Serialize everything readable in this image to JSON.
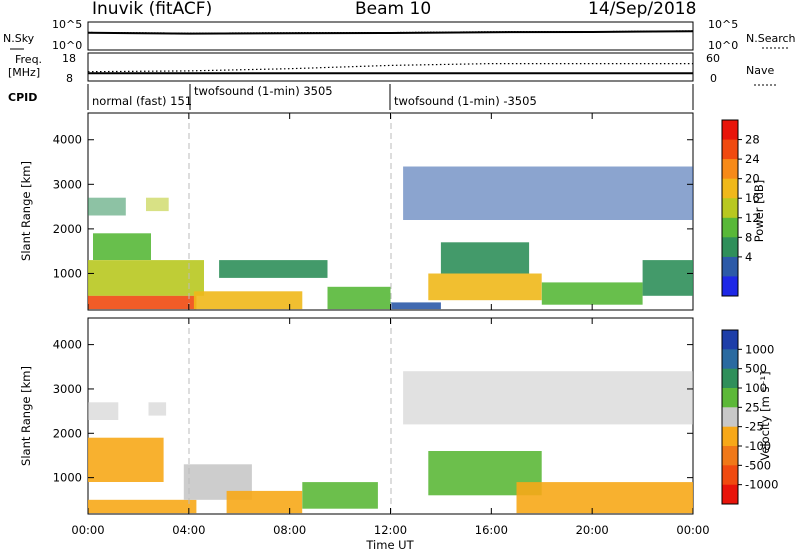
{
  "header": {
    "station": "Inuvik (fitACF)",
    "beam": "Beam 10",
    "date": "14/Sep/2018"
  },
  "noise_panel": {
    "left_label": "N.Sky",
    "right_label": "N.Search",
    "left_ticks": [
      "10^5",
      "10^0"
    ],
    "right_ticks": [
      "10^5",
      "10^0"
    ]
  },
  "freq_panel": {
    "left_label_line1": "Freq.",
    "left_label_line2": "[MHz]",
    "right_label": "Nave",
    "left_ticks": [
      "18",
      "8"
    ],
    "right_ticks": [
      "60",
      "0"
    ]
  },
  "cpid_panel": {
    "label": "CPID",
    "segments": [
      "normal (fast) 151",
      "twofsound (1-min) 3505",
      "twofsound (1-min) -3505"
    ]
  },
  "x_axis": {
    "title": "Time UT",
    "ticks": [
      "00:00",
      "04:00",
      "08:00",
      "12:00",
      "16:00",
      "20:00",
      "00:00"
    ]
  },
  "colorbars": {
    "power": {
      "label": "Power [dB]",
      "ticks": [
        "28",
        "24",
        "20",
        "16",
        "12",
        "8",
        "4"
      ],
      "colors": [
        "#e8140a",
        "#f04a10",
        "#f78a18",
        "#f0b81a",
        "#b8c820",
        "#58b838",
        "#2f8f5a",
        "#2c5aa8",
        "#1e28e6"
      ]
    },
    "velocity": {
      "label": "Velocity [m s⁻¹]",
      "ticks": [
        "1000",
        "500",
        "100",
        "25",
        "-25",
        "-100",
        "-500",
        "-1000"
      ],
      "colors": [
        "#1e3ea8",
        "#2a6aa0",
        "#2f8f5a",
        "#5cb838",
        "#c8c8c8",
        "#f7a818",
        "#f07818",
        "#f04a10",
        "#e8140a"
      ]
    }
  },
  "chart_data": [
    {
      "type": "line",
      "title": "N.Sky / N.Search",
      "x": [
        "00:00",
        "04:00",
        "08:00",
        "12:00",
        "16:00",
        "20:00",
        "00:00"
      ],
      "series": [
        {
          "name": "N.Sky",
          "values": [
            3500,
            2200,
            2800,
            3100,
            5000,
            5600,
            9000
          ]
        },
        {
          "name": "N.Search",
          "values": [
            4500,
            3000,
            3800,
            4200,
            6500,
            7000,
            11000
          ]
        }
      ],
      "ylim": [
        1,
        100000
      ],
      "yscale": "log"
    },
    {
      "type": "line",
      "title": "Freq. / Nave",
      "x": [
        "00:00",
        "04:00",
        "08:00",
        "12:00",
        "16:00",
        "20:00",
        "00:00"
      ],
      "series": [
        {
          "name": "Freq.",
          "values": [
            10.6,
            10.6,
            10.6,
            10.6,
            10.6,
            10.6,
            10.6
          ]
        },
        {
          "name": "Nave",
          "values": [
            20,
            22,
            28,
            37,
            42,
            42,
            42
          ]
        }
      ],
      "ylim_left": [
        8,
        18
      ],
      "ylim_right": [
        0,
        60
      ]
    },
    {
      "type": "heatmap",
      "title": "Power [dB]",
      "xlabel": "Time UT",
      "ylabel": "Slant Range [km]",
      "x_ticks": [
        "00:00",
        "04:00",
        "08:00",
        "12:00",
        "16:00",
        "20:00",
        "00:00"
      ],
      "y_ticks": [
        1000,
        2000,
        3000,
        4000
      ],
      "xlim": [
        0,
        24
      ],
      "ylim": [
        180,
        4600
      ],
      "colorbar_range": [
        0,
        32
      ],
      "regions": [
        {
          "t0": 0.0,
          "t1": 4.3,
          "r0": 200,
          "r1": 500,
          "value": 26
        },
        {
          "t0": 0.0,
          "t1": 4.6,
          "r0": 500,
          "r1": 1300,
          "value": 17
        },
        {
          "t0": 0.2,
          "t1": 2.5,
          "r0": 1300,
          "r1": 1900,
          "value": 12
        },
        {
          "t0": 0.0,
          "t1": 1.5,
          "r0": 2300,
          "r1": 2700,
          "value": 8
        },
        {
          "t0": 2.3,
          "t1": 3.2,
          "r0": 2400,
          "r1": 2700,
          "value": 15
        },
        {
          "t0": 4.2,
          "t1": 8.5,
          "r0": 200,
          "r1": 600,
          "value": 20
        },
        {
          "t0": 5.2,
          "t1": 9.5,
          "r0": 900,
          "r1": 1300,
          "value": 9
        },
        {
          "t0": 9.5,
          "t1": 12.0,
          "r0": 200,
          "r1": 700,
          "value": 14
        },
        {
          "t0": 12.0,
          "t1": 14.0,
          "r0": 200,
          "r1": 350,
          "value": 5
        },
        {
          "t0": 13.5,
          "t1": 18.0,
          "r0": 400,
          "r1": 1000,
          "value": 19
        },
        {
          "t0": 14.0,
          "t1": 17.5,
          "r0": 1000,
          "r1": 1700,
          "value": 9
        },
        {
          "t0": 18.0,
          "t1": 22.0,
          "r0": 300,
          "r1": 800,
          "value": 14
        },
        {
          "t0": 22.0,
          "t1": 24.0,
          "r0": 500,
          "r1": 1300,
          "value": 10
        },
        {
          "t0": 12.5,
          "t1": 24.0,
          "r0": 2200,
          "r1": 3400,
          "value": 5
        }
      ]
    },
    {
      "type": "heatmap",
      "title": "Velocity [m s⁻¹]",
      "xlabel": "Time UT",
      "ylabel": "Slant Range [km]",
      "x_ticks": [
        "00:00",
        "04:00",
        "08:00",
        "12:00",
        "16:00",
        "20:00",
        "00:00"
      ],
      "y_ticks": [
        1000,
        2000,
        3000,
        4000
      ],
      "xlim": [
        0,
        24
      ],
      "ylim": [
        180,
        4600
      ],
      "colorbar_range": [
        -1000,
        1000
      ],
      "regions": [
        {
          "t0": 0.0,
          "t1": 1.2,
          "r0": 2300,
          "r1": 2700,
          "value": 0
        },
        {
          "t0": 2.4,
          "t1": 3.1,
          "r0": 2400,
          "r1": 2700,
          "value": 0
        },
        {
          "t0": 0.0,
          "t1": 3.0,
          "r0": 900,
          "r1": 1900,
          "value": -300
        },
        {
          "t0": 0.0,
          "t1": 4.3,
          "r0": 200,
          "r1": 500,
          "value": -200
        },
        {
          "t0": 3.8,
          "t1": 6.5,
          "r0": 500,
          "r1": 1300,
          "value": 0
        },
        {
          "t0": 5.5,
          "t1": 8.5,
          "r0": 200,
          "r1": 700,
          "value": -300
        },
        {
          "t0": 8.5,
          "t1": 11.5,
          "r0": 300,
          "r1": 900,
          "value": 200
        },
        {
          "t0": 13.5,
          "t1": 18.0,
          "r0": 600,
          "r1": 1600,
          "value": 300
        },
        {
          "t0": 17.0,
          "t1": 24.0,
          "r0": 200,
          "r1": 900,
          "value": -300
        },
        {
          "t0": 12.5,
          "t1": 24.0,
          "r0": 2200,
          "r1": 3400,
          "value": 0
        }
      ]
    }
  ]
}
